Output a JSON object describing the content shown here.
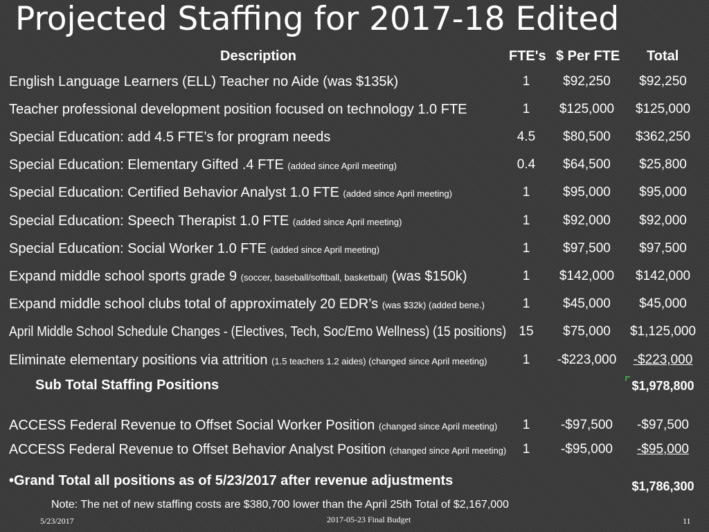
{
  "title": "Projected Staffing for 2017-18 Edited",
  "headers": {
    "description": "Description",
    "fte": "FTE's",
    "per_fte": "$ Per FTE",
    "total": "Total"
  },
  "rows": [
    {
      "desc": "English Language Learners (ELL) Teacher no Aide (was $135k)",
      "note": "",
      "desc_after": "",
      "fte": "1",
      "per_fte": "$92,250",
      "total": "$92,250"
    },
    {
      "desc": "Teacher professional development position focused on technology 1.0 FTE",
      "note": "",
      "desc_after": "",
      "fte": "1",
      "per_fte": "$125,000",
      "total": "$125,000"
    },
    {
      "desc": "Special Education: add 4.5 FTE’s for program needs",
      "note": "",
      "desc_after": "",
      "fte": "4.5",
      "per_fte": "$80,500",
      "total": "$362,250"
    },
    {
      "desc": "Special Education: Elementary Gifted .4 FTE ",
      "note": "(added since April meeting)",
      "desc_after": "",
      "fte": "0.4",
      "per_fte": "$64,500",
      "total": "$25,800"
    },
    {
      "desc": "Special Education: Certified Behavior Analyst 1.0 FTE ",
      "note": "(added since April meeting)",
      "desc_after": "",
      "fte": "1",
      "per_fte": "$95,000",
      "total": "$95,000"
    },
    {
      "desc": "Special Education: Speech Therapist 1.0 FTE ",
      "note": "(added since April meeting)",
      "desc_after": "",
      "fte": "1",
      "per_fte": "$92,000",
      "total": "$92,000"
    },
    {
      "desc": "Special Education: Social Worker 1.0 FTE ",
      "note": "(added since April meeting)",
      "desc_after": "",
      "fte": "1",
      "per_fte": "$97,500",
      "total": "$97,500"
    },
    {
      "desc": "Expand middle school sports grade 9 ",
      "note": "(soccer, baseball/softball, basketball)",
      "desc_after": " (was $150k)",
      "fte": "1",
      "per_fte": "$142,000",
      "total": "$142,000"
    },
    {
      "desc": "Expand middle school clubs total of approximately 20 EDR’s ",
      "note": "(was $32k) (added bene.)",
      "desc_after": "",
      "fte": "1",
      "per_fte": "$45,000",
      "total": "$45,000"
    },
    {
      "desc": "April Middle School Schedule Changes - (Electives, Tech, Soc/Emo Wellness) (15 positions)",
      "note": "",
      "desc_after": "",
      "fte": "15",
      "per_fte": "$75,000",
      "total": "$1,125,000"
    },
    {
      "desc": "Eliminate elementary positions via attrition ",
      "note": "(1.5 teachers 1.2 aides) (changed since April meeting)",
      "desc_after": "",
      "fte": "1",
      "per_fte": "-$223,000",
      "total": "-$223,000"
    }
  ],
  "subtotal": {
    "label": "Sub Total Staffing Positions",
    "value": "$1,978,800"
  },
  "revenue_rows": [
    {
      "desc": "ACCESS Federal Revenue to Offset Social Worker Position ",
      "note": "(changed since April meeting)",
      "desc_after": "",
      "fte": "1",
      "per_fte": "-$97,500",
      "total": "-$97,500"
    },
    {
      "desc": "ACCESS Federal Revenue to Offset Behavior Analyst Position ",
      "note": "(changed since April meeting)",
      "desc_after": "",
      "fte": "1",
      "per_fte": "-$95,000",
      "total": "-$95,000"
    }
  ],
  "grand_total": {
    "label": "•Grand Total all positions as of 5/23/2017 after revenue adjustments",
    "value": "$1,786,300"
  },
  "footnote": "Note:  The net of new staffing costs are $380,700 lower than the April 25th Total  of $2,167,000",
  "footer": {
    "date": "5/23/2017",
    "center": "2017-05-23 Final Budget",
    "page": "11"
  },
  "colors": {
    "background": "#3a3a3a",
    "text": "#ffffff",
    "accent_mark": "#3fa34d"
  }
}
